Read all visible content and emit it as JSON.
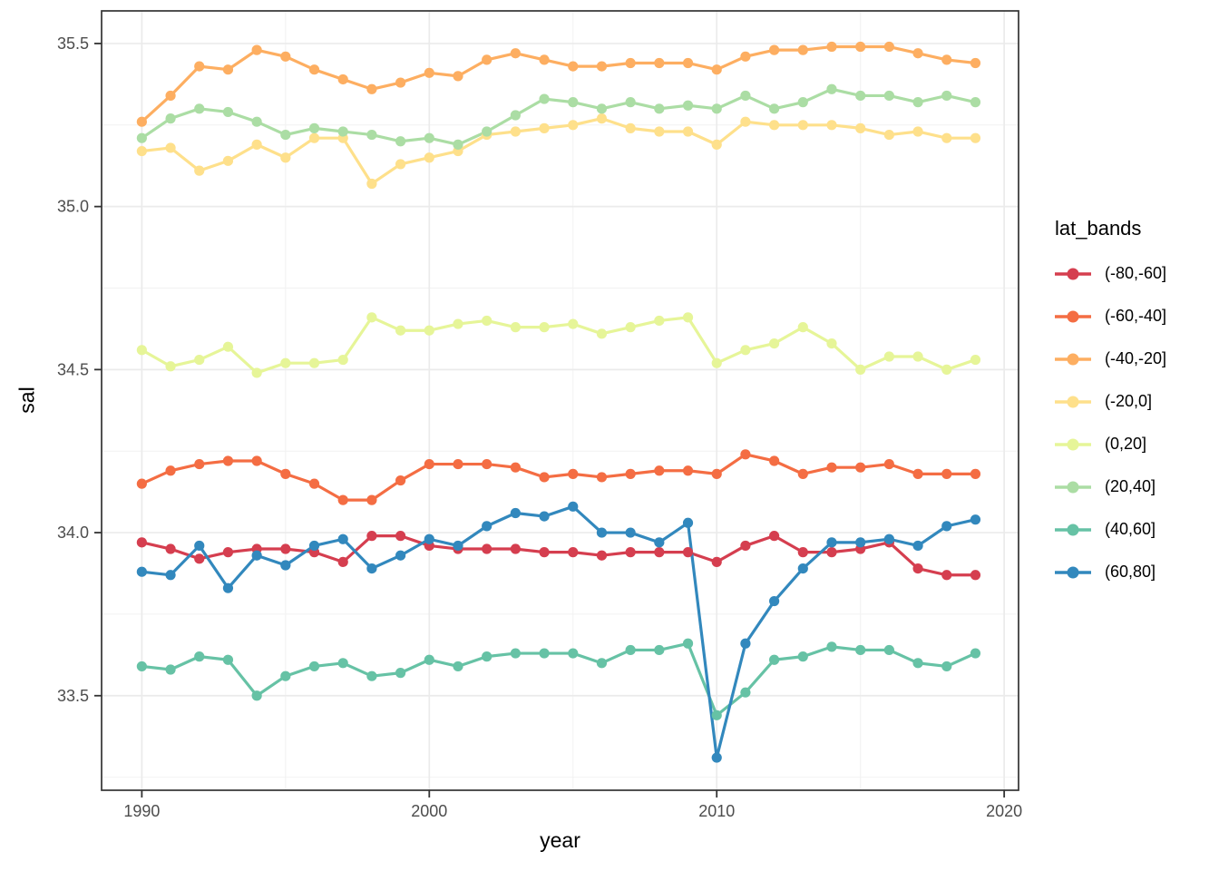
{
  "figure": {
    "xlabel": "year",
    "ylabel": "sal",
    "legend_title": "lat_bands"
  },
  "chart_data": {
    "type": "line",
    "title": "",
    "xlabel": "year",
    "ylabel": "sal",
    "legend_title": "lat_bands",
    "legend_position": "right",
    "grid": true,
    "xlim": [
      1988.6,
      2020.5
    ],
    "ylim": [
      33.21,
      35.6
    ],
    "x_major_ticks": [
      1990,
      2000,
      2010,
      2020
    ],
    "x_minor_ticks": [
      1995,
      2005,
      2015
    ],
    "x_tick_labels": [
      "1990",
      "2000",
      "2010",
      "2020"
    ],
    "y_major_ticks": [
      33.5,
      34.0,
      34.5,
      35.0,
      35.5
    ],
    "y_minor_ticks": [
      33.25,
      33.75,
      34.25,
      34.75,
      35.25
    ],
    "y_tick_labels": [
      "33.5",
      "34.0",
      "34.5",
      "35.0",
      "35.5"
    ],
    "x": [
      1990,
      1991,
      1992,
      1993,
      1994,
      1995,
      1996,
      1997,
      1998,
      1999,
      2000,
      2001,
      2002,
      2003,
      2004,
      2005,
      2006,
      2007,
      2008,
      2009,
      2010,
      2011,
      2012,
      2013,
      2014,
      2015,
      2016,
      2017,
      2018,
      2019
    ],
    "series": [
      {
        "name": "(-80,-60]",
        "color": "#d53e4f",
        "values": [
          33.97,
          33.95,
          33.92,
          33.94,
          33.95,
          33.95,
          33.94,
          33.91,
          33.99,
          33.99,
          33.96,
          33.95,
          33.95,
          33.95,
          33.94,
          33.94,
          33.93,
          33.94,
          33.94,
          33.94,
          33.91,
          33.96,
          33.99,
          33.94,
          33.94,
          33.95,
          33.97,
          33.89,
          33.87,
          33.87
        ]
      },
      {
        "name": "(-60,-40]",
        "color": "#f46d43",
        "values": [
          34.15,
          34.19,
          34.21,
          34.22,
          34.22,
          34.18,
          34.15,
          34.1,
          34.1,
          34.16,
          34.21,
          34.21,
          34.21,
          34.2,
          34.17,
          34.18,
          34.17,
          34.18,
          34.19,
          34.19,
          34.18,
          34.24,
          34.22,
          34.18,
          34.2,
          34.2,
          34.21,
          34.18,
          34.18,
          34.18
        ]
      },
      {
        "name": "(-40,-20]",
        "color": "#fdae61",
        "values": [
          35.26,
          35.34,
          35.43,
          35.42,
          35.48,
          35.46,
          35.42,
          35.39,
          35.36,
          35.38,
          35.41,
          35.4,
          35.45,
          35.47,
          35.45,
          35.43,
          35.43,
          35.44,
          35.44,
          35.44,
          35.42,
          35.46,
          35.48,
          35.48,
          35.49,
          35.49,
          35.49,
          35.47,
          35.45,
          35.44
        ]
      },
      {
        "name": "(-20,0]",
        "color": "#fee08b",
        "values": [
          35.17,
          35.18,
          35.11,
          35.14,
          35.19,
          35.15,
          35.21,
          35.21,
          35.07,
          35.13,
          35.15,
          35.17,
          35.22,
          35.23,
          35.24,
          35.25,
          35.27,
          35.24,
          35.23,
          35.23,
          35.19,
          35.26,
          35.25,
          35.25,
          35.25,
          35.24,
          35.22,
          35.23,
          35.21,
          35.21
        ]
      },
      {
        "name": "(0,20]",
        "color": "#e6f598",
        "values": [
          34.56,
          34.51,
          34.53,
          34.57,
          34.49,
          34.52,
          34.52,
          34.53,
          34.66,
          34.62,
          34.62,
          34.64,
          34.65,
          34.63,
          34.63,
          34.64,
          34.61,
          34.63,
          34.65,
          34.66,
          34.52,
          34.56,
          34.58,
          34.63,
          34.58,
          34.5,
          34.54,
          34.54,
          34.5,
          34.53
        ]
      },
      {
        "name": "(20,40]",
        "color": "#abdda4",
        "values": [
          35.21,
          35.27,
          35.3,
          35.29,
          35.26,
          35.22,
          35.24,
          35.23,
          35.22,
          35.2,
          35.21,
          35.19,
          35.23,
          35.28,
          35.33,
          35.32,
          35.3,
          35.32,
          35.3,
          35.31,
          35.3,
          35.34,
          35.3,
          35.32,
          35.36,
          35.34,
          35.34,
          35.32,
          35.34,
          35.32
        ]
      },
      {
        "name": "(40,60]",
        "color": "#66c2a5",
        "values": [
          33.59,
          33.58,
          33.62,
          33.61,
          33.5,
          33.56,
          33.59,
          33.6,
          33.56,
          33.57,
          33.61,
          33.59,
          33.62,
          33.63,
          33.63,
          33.63,
          33.6,
          33.64,
          33.64,
          33.66,
          33.44,
          33.51,
          33.61,
          33.62,
          33.65,
          33.64,
          33.64,
          33.6,
          33.59,
          33.63
        ]
      },
      {
        "name": "(60,80]",
        "color": "#3288bd",
        "values": [
          33.88,
          33.87,
          33.96,
          33.83,
          33.93,
          33.9,
          33.96,
          33.98,
          33.89,
          33.93,
          33.98,
          33.96,
          34.02,
          34.06,
          34.05,
          34.08,
          34.0,
          34.0,
          33.97,
          34.03,
          33.31,
          33.66,
          33.79,
          33.89,
          33.97,
          33.97,
          33.98,
          33.96,
          34.02,
          34.04
        ]
      }
    ],
    "style": {
      "panel_border_color": "#333333",
      "grid_major_color": "#ebebeb",
      "grid_minor_color": "#f2f2f2",
      "tick_color": "#333333",
      "tick_label_color": "#4d4d4d",
      "background": "#ffffff"
    }
  }
}
